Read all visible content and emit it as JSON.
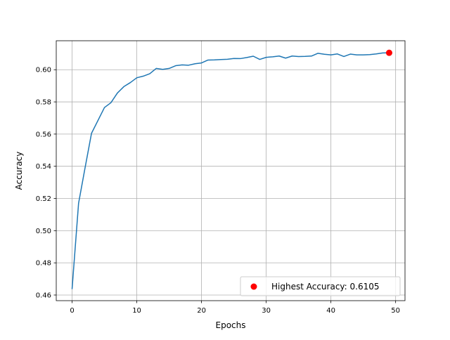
{
  "chart_data": {
    "type": "line",
    "title": "",
    "xlabel": "Epochs",
    "ylabel": "Accuracy",
    "xlim": [
      -2.45,
      51.45
    ],
    "ylim": [
      0.4565,
      0.618
    ],
    "grid": true,
    "x_ticks": [
      0,
      10,
      20,
      30,
      40,
      50
    ],
    "y_ticks": [
      0.46,
      0.48,
      0.5,
      0.52,
      0.54,
      0.56,
      0.58,
      0.6
    ],
    "series": [
      {
        "color": "#1f77b4",
        "x": [
          0,
          1,
          2,
          3,
          4,
          5,
          6,
          7,
          8,
          9,
          10,
          11,
          12,
          13,
          14,
          15,
          16,
          17,
          18,
          19,
          20,
          21,
          22,
          23,
          24,
          25,
          26,
          27,
          28,
          29,
          30,
          31,
          32,
          33,
          34,
          35,
          36,
          37,
          38,
          39,
          40,
          41,
          42,
          43,
          44,
          45,
          46,
          47,
          48,
          49
        ],
        "values": [
          0.464,
          0.517,
          0.539,
          0.5605,
          0.5685,
          0.5765,
          0.5795,
          0.5855,
          0.5895,
          0.592,
          0.595,
          0.596,
          0.5975,
          0.6008,
          0.6002,
          0.6008,
          0.6025,
          0.603,
          0.6028,
          0.6037,
          0.6042,
          0.606,
          0.6061,
          0.6063,
          0.6065,
          0.607,
          0.6069,
          0.6076,
          0.6084,
          0.6064,
          0.6077,
          0.608,
          0.6085,
          0.6072,
          0.6085,
          0.6082,
          0.6083,
          0.6085,
          0.6102,
          0.6096,
          0.6092,
          0.6098,
          0.6082,
          0.6097,
          0.6092,
          0.6092,
          0.6094,
          0.6098,
          0.6104,
          0.6105
        ]
      }
    ],
    "highlight": {
      "x": 49,
      "y": 0.6105,
      "color": "#ff0000",
      "label": "Highest Accuracy: 0.6105"
    },
    "legend": {
      "position": "lower-right",
      "entries": [
        "Highest Accuracy: 0.6105"
      ]
    }
  }
}
